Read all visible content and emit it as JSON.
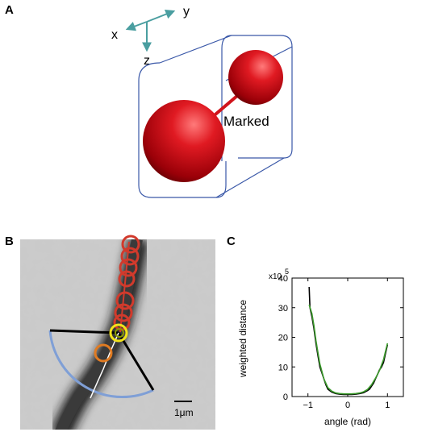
{
  "panels": {
    "a_label": "A",
    "b_label": "B",
    "c_label": "C"
  },
  "panel_a": {
    "axis_x": "x",
    "axis_y": "y",
    "axis_z": "z",
    "marked_label": "Marked",
    "colors": {
      "sphere": "#d0141c",
      "box": "#3a58a8",
      "axes": "#4a9ea0"
    }
  },
  "panel_b": {
    "scale_bar_label": "1μm",
    "colors": {
      "ring_red": "#d13a2c",
      "ring_orange": "#e07b22",
      "ring_yellow": "#f2e31a",
      "arc": "#7f9fd6"
    }
  },
  "chart_data": {
    "type": "line",
    "title": "",
    "xlabel": "angle (rad)",
    "ylabel": "weighted distance",
    "y_multiplier": "x10",
    "y_exponent": "5",
    "xlim": [
      -1.4,
      1.4
    ],
    "ylim": [
      0,
      40
    ],
    "x_ticks": [
      -1,
      0,
      1
    ],
    "x_tick_labels": [
      "−1",
      "0",
      "1"
    ],
    "y_ticks": [
      0,
      10,
      20,
      30,
      40
    ],
    "y_tick_labels": [
      "0",
      "10",
      "20",
      "30",
      "40"
    ],
    "series": [
      {
        "color": "#000000",
        "x": [
          -0.97,
          -0.95,
          -0.9,
          -0.85,
          -0.8,
          -0.75,
          -0.7,
          -0.65,
          -0.6,
          -0.55,
          -0.5,
          -0.4,
          -0.3,
          -0.2,
          -0.1,
          0,
          0.1,
          0.2,
          0.3,
          0.4,
          0.5,
          0.55,
          0.6,
          0.65,
          0.7,
          0.75,
          0.8,
          0.85,
          0.9,
          0.95,
          1.0
        ],
        "y": [
          37,
          30,
          27,
          23,
          18,
          14,
          10,
          8,
          6,
          4,
          2.5,
          1.5,
          1.0,
          0.8,
          0.7,
          0.7,
          0.7,
          0.8,
          1.0,
          1.3,
          2.0,
          2.5,
          3.5,
          4.5,
          6.0,
          7.5,
          9.0,
          10.0,
          11.5,
          14.5,
          17.5
        ]
      },
      {
        "color": "#3a9a2a",
        "x": [
          -0.97,
          -0.9,
          -0.85,
          -0.8,
          -0.75,
          -0.7,
          -0.65,
          -0.6,
          -0.55,
          -0.5,
          -0.4,
          -0.3,
          -0.2,
          -0.1,
          0,
          0.1,
          0.2,
          0.3,
          0.4,
          0.5,
          0.6,
          0.7,
          0.8,
          0.9,
          1.0
        ],
        "y": [
          31,
          28,
          24,
          19,
          15,
          11,
          8.5,
          6,
          4.5,
          3,
          1.8,
          1.2,
          1.0,
          0.9,
          0.9,
          0.9,
          1.0,
          1.2,
          1.6,
          2.4,
          4.0,
          6.2,
          8.8,
          12.5,
          18
        ]
      }
    ]
  }
}
